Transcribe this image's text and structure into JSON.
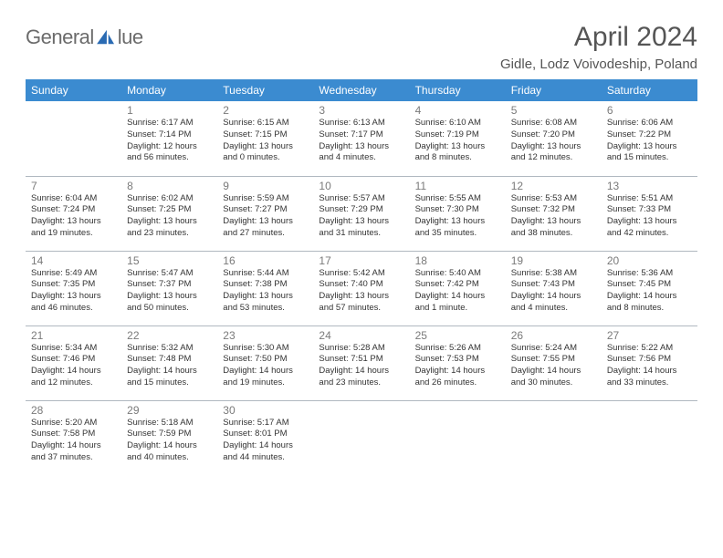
{
  "logo": {
    "text_left": "General",
    "text_right": "lue"
  },
  "title": "April 2024",
  "location": "Gidle, Lodz Voivodeship, Poland",
  "colors": {
    "header_bg": "#3b8bd0",
    "header_fg": "#ffffff",
    "page_bg": "#ffffff",
    "text": "#333333",
    "daynum": "#7a7a7a",
    "divider": "#b0b8c0",
    "logo_blue": "#2a6bb3"
  },
  "weekdays": [
    "Sunday",
    "Monday",
    "Tuesday",
    "Wednesday",
    "Thursday",
    "Friday",
    "Saturday"
  ],
  "weeks": [
    [
      {
        "n": "",
        "sr": "",
        "ss": "",
        "dl": ""
      },
      {
        "n": "1",
        "sr": "Sunrise: 6:17 AM",
        "ss": "Sunset: 7:14 PM",
        "dl": "Daylight: 12 hours and 56 minutes."
      },
      {
        "n": "2",
        "sr": "Sunrise: 6:15 AM",
        "ss": "Sunset: 7:15 PM",
        "dl": "Daylight: 13 hours and 0 minutes."
      },
      {
        "n": "3",
        "sr": "Sunrise: 6:13 AM",
        "ss": "Sunset: 7:17 PM",
        "dl": "Daylight: 13 hours and 4 minutes."
      },
      {
        "n": "4",
        "sr": "Sunrise: 6:10 AM",
        "ss": "Sunset: 7:19 PM",
        "dl": "Daylight: 13 hours and 8 minutes."
      },
      {
        "n": "5",
        "sr": "Sunrise: 6:08 AM",
        "ss": "Sunset: 7:20 PM",
        "dl": "Daylight: 13 hours and 12 minutes."
      },
      {
        "n": "6",
        "sr": "Sunrise: 6:06 AM",
        "ss": "Sunset: 7:22 PM",
        "dl": "Daylight: 13 hours and 15 minutes."
      }
    ],
    [
      {
        "n": "7",
        "sr": "Sunrise: 6:04 AM",
        "ss": "Sunset: 7:24 PM",
        "dl": "Daylight: 13 hours and 19 minutes."
      },
      {
        "n": "8",
        "sr": "Sunrise: 6:02 AM",
        "ss": "Sunset: 7:25 PM",
        "dl": "Daylight: 13 hours and 23 minutes."
      },
      {
        "n": "9",
        "sr": "Sunrise: 5:59 AM",
        "ss": "Sunset: 7:27 PM",
        "dl": "Daylight: 13 hours and 27 minutes."
      },
      {
        "n": "10",
        "sr": "Sunrise: 5:57 AM",
        "ss": "Sunset: 7:29 PM",
        "dl": "Daylight: 13 hours and 31 minutes."
      },
      {
        "n": "11",
        "sr": "Sunrise: 5:55 AM",
        "ss": "Sunset: 7:30 PM",
        "dl": "Daylight: 13 hours and 35 minutes."
      },
      {
        "n": "12",
        "sr": "Sunrise: 5:53 AM",
        "ss": "Sunset: 7:32 PM",
        "dl": "Daylight: 13 hours and 38 minutes."
      },
      {
        "n": "13",
        "sr": "Sunrise: 5:51 AM",
        "ss": "Sunset: 7:33 PM",
        "dl": "Daylight: 13 hours and 42 minutes."
      }
    ],
    [
      {
        "n": "14",
        "sr": "Sunrise: 5:49 AM",
        "ss": "Sunset: 7:35 PM",
        "dl": "Daylight: 13 hours and 46 minutes."
      },
      {
        "n": "15",
        "sr": "Sunrise: 5:47 AM",
        "ss": "Sunset: 7:37 PM",
        "dl": "Daylight: 13 hours and 50 minutes."
      },
      {
        "n": "16",
        "sr": "Sunrise: 5:44 AM",
        "ss": "Sunset: 7:38 PM",
        "dl": "Daylight: 13 hours and 53 minutes."
      },
      {
        "n": "17",
        "sr": "Sunrise: 5:42 AM",
        "ss": "Sunset: 7:40 PM",
        "dl": "Daylight: 13 hours and 57 minutes."
      },
      {
        "n": "18",
        "sr": "Sunrise: 5:40 AM",
        "ss": "Sunset: 7:42 PM",
        "dl": "Daylight: 14 hours and 1 minute."
      },
      {
        "n": "19",
        "sr": "Sunrise: 5:38 AM",
        "ss": "Sunset: 7:43 PM",
        "dl": "Daylight: 14 hours and 4 minutes."
      },
      {
        "n": "20",
        "sr": "Sunrise: 5:36 AM",
        "ss": "Sunset: 7:45 PM",
        "dl": "Daylight: 14 hours and 8 minutes."
      }
    ],
    [
      {
        "n": "21",
        "sr": "Sunrise: 5:34 AM",
        "ss": "Sunset: 7:46 PM",
        "dl": "Daylight: 14 hours and 12 minutes."
      },
      {
        "n": "22",
        "sr": "Sunrise: 5:32 AM",
        "ss": "Sunset: 7:48 PM",
        "dl": "Daylight: 14 hours and 15 minutes."
      },
      {
        "n": "23",
        "sr": "Sunrise: 5:30 AM",
        "ss": "Sunset: 7:50 PM",
        "dl": "Daylight: 14 hours and 19 minutes."
      },
      {
        "n": "24",
        "sr": "Sunrise: 5:28 AM",
        "ss": "Sunset: 7:51 PM",
        "dl": "Daylight: 14 hours and 23 minutes."
      },
      {
        "n": "25",
        "sr": "Sunrise: 5:26 AM",
        "ss": "Sunset: 7:53 PM",
        "dl": "Daylight: 14 hours and 26 minutes."
      },
      {
        "n": "26",
        "sr": "Sunrise: 5:24 AM",
        "ss": "Sunset: 7:55 PM",
        "dl": "Daylight: 14 hours and 30 minutes."
      },
      {
        "n": "27",
        "sr": "Sunrise: 5:22 AM",
        "ss": "Sunset: 7:56 PM",
        "dl": "Daylight: 14 hours and 33 minutes."
      }
    ],
    [
      {
        "n": "28",
        "sr": "Sunrise: 5:20 AM",
        "ss": "Sunset: 7:58 PM",
        "dl": "Daylight: 14 hours and 37 minutes."
      },
      {
        "n": "29",
        "sr": "Sunrise: 5:18 AM",
        "ss": "Sunset: 7:59 PM",
        "dl": "Daylight: 14 hours and 40 minutes."
      },
      {
        "n": "30",
        "sr": "Sunrise: 5:17 AM",
        "ss": "Sunset: 8:01 PM",
        "dl": "Daylight: 14 hours and 44 minutes."
      },
      {
        "n": "",
        "sr": "",
        "ss": "",
        "dl": ""
      },
      {
        "n": "",
        "sr": "",
        "ss": "",
        "dl": ""
      },
      {
        "n": "",
        "sr": "",
        "ss": "",
        "dl": ""
      },
      {
        "n": "",
        "sr": "",
        "ss": "",
        "dl": ""
      }
    ]
  ]
}
